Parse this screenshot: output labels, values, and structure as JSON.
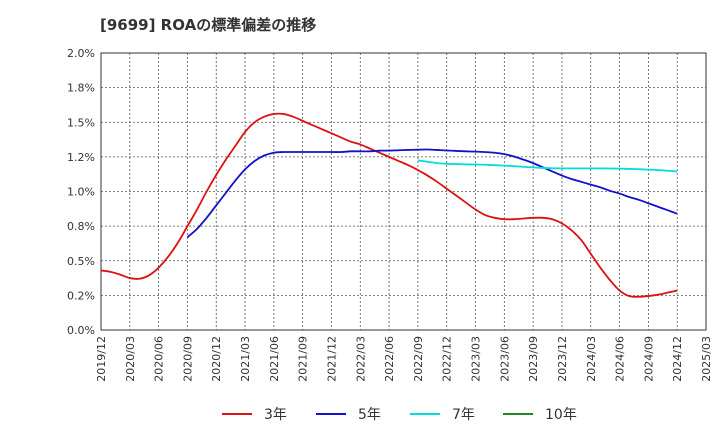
{
  "chart_data": {
    "type": "line",
    "title": "[9699]  ROAの標準偏差の推移",
    "xlabel": "",
    "ylabel": "",
    "ylim": [
      0,
      2.0
    ],
    "yticks": [
      "0.0%",
      "0.2%",
      "0.5%",
      "0.8%",
      "1.0%",
      "1.2%",
      "1.5%",
      "1.8%",
      "2.0%"
    ],
    "ytick_values": [
      0,
      0.25,
      0.5,
      0.75,
      1.0,
      1.25,
      1.5,
      1.75,
      2.0
    ],
    "x_ticks": [
      "2019/12",
      "2020/03",
      "2020/06",
      "2020/09",
      "2020/12",
      "2021/03",
      "2021/06",
      "2021/09",
      "2021/12",
      "2022/03",
      "2022/06",
      "2022/09",
      "2022/12",
      "2023/03",
      "2023/06",
      "2023/09",
      "2023/12",
      "2024/03",
      "2024/06",
      "2024/09",
      "2024/12",
      "2025/03"
    ],
    "grid": true,
    "legend_position": "bottom",
    "series": [
      {
        "name": "3年",
        "color": "#dd1111",
        "x": [
          "2019/12",
          "2020/01",
          "2020/02",
          "2020/03",
          "2020/04",
          "2020/05",
          "2020/06",
          "2020/07",
          "2020/08",
          "2020/09",
          "2020/10",
          "2020/11",
          "2020/12",
          "2021/01",
          "2021/02",
          "2021/03",
          "2021/04",
          "2021/05",
          "2021/06",
          "2021/07",
          "2021/08",
          "2021/09",
          "2021/10",
          "2021/11",
          "2021/12",
          "2022/01",
          "2022/02",
          "2022/03",
          "2022/04",
          "2022/05",
          "2022/06",
          "2022/07",
          "2022/08",
          "2022/09",
          "2022/10",
          "2022/11",
          "2022/12",
          "2023/01",
          "2023/02",
          "2023/03",
          "2023/04",
          "2023/05",
          "2023/06",
          "2023/07",
          "2023/08",
          "2023/09",
          "2023/10",
          "2023/11",
          "2023/12",
          "2024/01",
          "2024/02",
          "2024/03",
          "2024/04",
          "2024/05",
          "2024/06",
          "2024/07",
          "2024/08",
          "2024/09",
          "2024/10",
          "2024/11",
          "2024/12"
        ],
        "values": [
          0.43,
          0.42,
          0.4,
          0.375,
          0.37,
          0.395,
          0.45,
          0.53,
          0.63,
          0.75,
          0.87,
          1.0,
          1.12,
          1.23,
          1.33,
          1.43,
          1.5,
          1.54,
          1.56,
          1.56,
          1.54,
          1.51,
          1.48,
          1.45,
          1.42,
          1.39,
          1.36,
          1.34,
          1.31,
          1.28,
          1.25,
          1.22,
          1.19,
          1.155,
          1.115,
          1.07,
          1.02,
          0.97,
          0.92,
          0.87,
          0.83,
          0.81,
          0.8,
          0.8,
          0.805,
          0.81,
          0.81,
          0.8,
          0.77,
          0.72,
          0.65,
          0.55,
          0.45,
          0.36,
          0.285,
          0.245,
          0.24,
          0.245,
          0.255,
          0.27,
          0.285
        ]
      },
      {
        "name": "5年",
        "color": "#1111cc",
        "x": [
          "2020/09",
          "2020/10",
          "2020/11",
          "2020/12",
          "2021/01",
          "2021/02",
          "2021/03",
          "2021/04",
          "2021/05",
          "2021/06",
          "2021/07",
          "2021/08",
          "2021/09",
          "2021/10",
          "2021/11",
          "2021/12",
          "2022/01",
          "2022/02",
          "2022/03",
          "2022/04",
          "2022/05",
          "2022/06",
          "2022/07",
          "2022/08",
          "2022/09",
          "2022/10",
          "2022/11",
          "2022/12",
          "2023/01",
          "2023/02",
          "2023/03",
          "2023/04",
          "2023/05",
          "2023/06",
          "2023/07",
          "2023/08",
          "2023/09",
          "2023/10",
          "2023/11",
          "2023/12",
          "2024/01",
          "2024/02",
          "2024/03",
          "2024/04",
          "2024/05",
          "2024/06",
          "2024/07",
          "2024/08",
          "2024/09",
          "2024/10",
          "2024/11",
          "2024/12"
        ],
        "values": [
          0.67,
          0.73,
          0.81,
          0.9,
          0.99,
          1.08,
          1.16,
          1.22,
          1.26,
          1.28,
          1.285,
          1.285,
          1.285,
          1.285,
          1.285,
          1.285,
          1.285,
          1.29,
          1.29,
          1.29,
          1.295,
          1.295,
          1.298,
          1.3,
          1.302,
          1.303,
          1.3,
          1.296,
          1.293,
          1.29,
          1.288,
          1.285,
          1.28,
          1.27,
          1.253,
          1.23,
          1.205,
          1.175,
          1.145,
          1.115,
          1.09,
          1.07,
          1.05,
          1.03,
          1.005,
          0.985,
          0.96,
          0.94,
          0.915,
          0.89,
          0.865,
          0.84
        ]
      },
      {
        "name": "7年",
        "color": "#00dddd",
        "x": [
          "2022/09",
          "2022/10",
          "2022/11",
          "2022/12",
          "2023/01",
          "2023/02",
          "2023/03",
          "2023/04",
          "2023/05",
          "2023/06",
          "2023/07",
          "2023/08",
          "2023/09",
          "2023/10",
          "2023/11",
          "2023/12",
          "2024/01",
          "2024/02",
          "2024/03",
          "2024/04",
          "2024/05",
          "2024/06",
          "2024/07",
          "2024/08",
          "2024/09",
          "2024/10",
          "2024/11",
          "2024/12"
        ],
        "values": [
          1.225,
          1.215,
          1.205,
          1.2,
          1.198,
          1.196,
          1.195,
          1.193,
          1.19,
          1.187,
          1.183,
          1.178,
          1.174,
          1.17,
          1.168,
          1.167,
          1.167,
          1.167,
          1.167,
          1.167,
          1.166,
          1.165,
          1.163,
          1.161,
          1.158,
          1.155,
          1.15,
          1.145
        ]
      },
      {
        "name": "10年",
        "color": "#228822",
        "x": [],
        "values": []
      }
    ]
  }
}
